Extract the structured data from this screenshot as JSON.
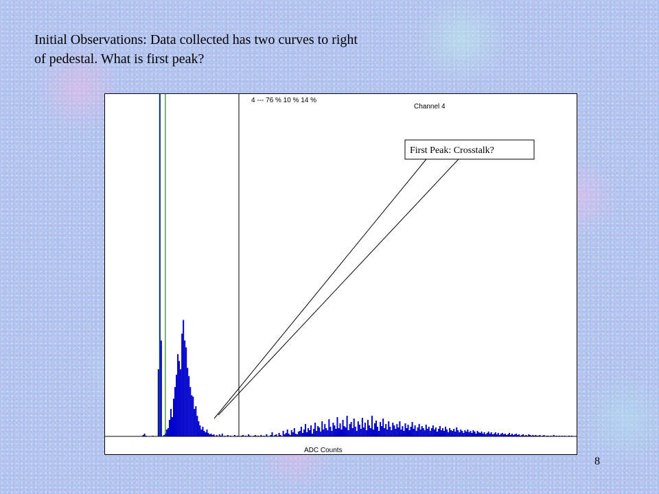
{
  "slide": {
    "title_line1": "Initial Observations: Data collected has two curves to right",
    "title_line2": "of pedestal. What is first peak?",
    "page_number": "8"
  },
  "chart_data": {
    "type": "bar",
    "title": "Channel 4",
    "xlabel": "ADC Counts",
    "ylabel": "",
    "grid": false,
    "legend": "",
    "bar_color": "#0000cc",
    "annotation_top": "4 --- 76 %  10 %  14 %",
    "callout": "First Peak: Crosstalk?",
    "x": [
      0,
      1,
      2,
      3,
      4,
      5,
      6,
      7,
      8,
      9,
      10,
      11,
      12,
      13,
      14,
      15,
      16,
      17,
      18,
      19,
      20,
      21,
      22,
      23,
      24,
      25,
      26,
      27,
      28,
      29,
      30,
      31,
      32,
      33,
      34,
      35,
      36,
      37,
      38,
      39,
      40,
      41,
      42,
      43,
      44,
      45,
      46,
      47,
      48,
      49,
      50,
      51,
      52,
      53,
      54,
      55,
      56,
      57,
      58,
      59,
      60,
      61,
      62,
      63,
      64,
      65,
      66,
      67,
      68,
      69,
      70,
      71,
      72,
      73,
      74,
      75,
      76,
      77,
      78,
      79,
      80,
      81,
      82,
      83,
      84,
      85,
      86,
      87,
      88,
      89,
      90,
      91,
      92,
      93,
      94,
      95,
      96,
      97,
      98,
      99,
      100,
      101,
      102,
      103,
      104,
      105,
      106,
      107,
      108,
      109,
      110,
      111,
      112,
      113,
      114,
      115,
      116,
      117,
      118,
      119,
      120,
      121,
      122,
      123,
      124,
      125,
      126,
      127,
      128,
      129,
      130,
      131,
      132,
      133,
      134,
      135,
      136,
      137,
      138,
      139,
      140,
      141,
      142,
      143,
      144,
      145,
      146,
      147,
      148,
      149,
      150,
      151,
      152,
      153,
      154,
      155,
      156,
      157,
      158,
      159,
      160,
      161,
      162,
      163,
      164,
      165,
      166,
      167,
      168,
      169,
      170,
      171,
      172,
      173,
      174,
      175,
      176,
      177,
      178,
      179,
      180,
      181,
      182,
      183,
      184,
      185,
      186,
      187,
      188,
      189,
      190,
      191,
      192,
      193,
      194,
      195,
      196,
      197,
      198,
      199,
      200,
      201,
      202,
      203,
      204,
      205,
      206,
      207,
      208,
      209,
      210,
      211,
      212,
      213,
      214,
      215,
      216,
      217,
      218,
      219,
      220,
      221,
      222,
      223,
      224,
      225,
      226,
      227,
      228,
      229,
      230,
      231,
      232,
      233,
      234,
      235,
      236,
      237,
      238,
      239,
      240,
      241,
      242,
      243,
      244,
      245,
      246,
      247,
      248,
      249,
      250,
      251,
      252,
      253,
      254,
      255,
      256,
      257,
      258,
      259,
      260,
      261,
      262,
      263,
      264,
      265,
      266,
      267,
      268,
      269,
      270,
      271,
      272,
      273,
      274,
      275,
      276,
      277,
      278,
      279,
      280,
      281,
      282,
      283,
      284,
      285,
      286,
      287,
      288,
      289,
      290,
      291,
      292,
      293,
      294,
      295,
      296,
      297,
      298,
      299,
      300,
      301,
      302,
      303,
      304,
      305,
      306,
      307,
      308,
      309,
      310,
      311,
      312,
      313,
      314,
      315,
      316,
      317,
      318,
      319,
      320,
      321,
      322,
      323,
      324,
      325,
      326,
      327,
      328,
      329,
      330,
      331,
      332,
      333,
      334,
      335,
      336,
      337,
      338,
      339
    ],
    "values": [
      0,
      0,
      0,
      0,
      0,
      0,
      0,
      0,
      0,
      0,
      0,
      0,
      0,
      0,
      0,
      0,
      0,
      0,
      0,
      0,
      0,
      0,
      0,
      0,
      0,
      0,
      0,
      2,
      4,
      1,
      0,
      0,
      0,
      0,
      1,
      0,
      0,
      0,
      98,
      500,
      140,
      0,
      2,
      4,
      10,
      12,
      24,
      40,
      28,
      55,
      72,
      90,
      120,
      110,
      98,
      150,
      170,
      140,
      130,
      100,
      88,
      72,
      60,
      58,
      40,
      44,
      30,
      22,
      16,
      10,
      14,
      8,
      6,
      10,
      5,
      3,
      4,
      2,
      3,
      0,
      2,
      0,
      3,
      1,
      4,
      0,
      1,
      0,
      2,
      0,
      1,
      0,
      0,
      2,
      0,
      1,
      0,
      0,
      1,
      2,
      0,
      1,
      0,
      3,
      1,
      0,
      0,
      1,
      2,
      0,
      1,
      0,
      2,
      0,
      1,
      0,
      3,
      0,
      0,
      2,
      6,
      0,
      2,
      3,
      0,
      5,
      2,
      0,
      8,
      3,
      5,
      10,
      4,
      2,
      9,
      6,
      12,
      4,
      3,
      7,
      8,
      14,
      5,
      10,
      18,
      6,
      12,
      9,
      16,
      4,
      11,
      20,
      8,
      15,
      13,
      7,
      22,
      10,
      18,
      12,
      9,
      25,
      14,
      8,
      20,
      16,
      11,
      28,
      12,
      19,
      10,
      24,
      15,
      13,
      30,
      9,
      18,
      21,
      12,
      26,
      14,
      8,
      22,
      17,
      11,
      27,
      13,
      20,
      9,
      24,
      16,
      12,
      30,
      10,
      19,
      23,
      14,
      8,
      21,
      15,
      26,
      12,
      18,
      10,
      22,
      14,
      9,
      20,
      16,
      11,
      18,
      13,
      22,
      10,
      15,
      8,
      19,
      12,
      17,
      9,
      14,
      21,
      11,
      16,
      8,
      13,
      18,
      10,
      15,
      12,
      9,
      17,
      11,
      14,
      8,
      12,
      16,
      10,
      13,
      7,
      11,
      15,
      9,
      12,
      8,
      14,
      10,
      6,
      12,
      9,
      8,
      11,
      7,
      13,
      9,
      6,
      10,
      8,
      5,
      9,
      7,
      10,
      6,
      8,
      5,
      9,
      7,
      4,
      8,
      6,
      5,
      7,
      4,
      6,
      3,
      5,
      7,
      4,
      6,
      3,
      4,
      6,
      3,
      5,
      2,
      4,
      5,
      3,
      4,
      2,
      3,
      5,
      2,
      4,
      2,
      3,
      4,
      2,
      3,
      1,
      2,
      3,
      1,
      2,
      1,
      3,
      2,
      1,
      2,
      1,
      2,
      1,
      1,
      2,
      0,
      1,
      2,
      0,
      1,
      1,
      0,
      1,
      0,
      2,
      0,
      1,
      0,
      1,
      0,
      1,
      0,
      1,
      0,
      0,
      1,
      0,
      1,
      0,
      0,
      0
    ],
    "xlim": [
      0,
      340
    ],
    "ylim": [
      0,
      500
    ],
    "vertical_markers": [
      39.5,
      43.5,
      96.5
    ]
  }
}
